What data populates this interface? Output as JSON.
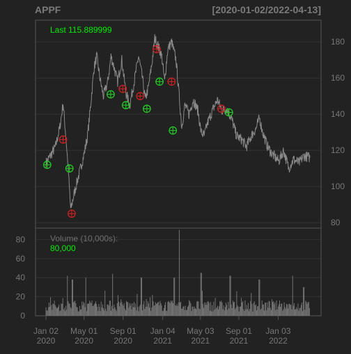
{
  "header": {
    "symbol": "APPF",
    "date_range": "[2020-01-02/2022-04-13]"
  },
  "colors": {
    "background": "#222222",
    "panel_border": "#555555",
    "grid": "#333333",
    "axis_text": "#777777",
    "header_text": "#7a7a7a",
    "price_line": "#8a8a8a",
    "volume_bar": "#7d7d7d",
    "buy_marker": "#22cc22",
    "sell_marker": "#cc2222",
    "last_text": "#00ee00"
  },
  "chart_data": [
    {
      "type": "line",
      "name": "price",
      "legend_text": "Last 115.889999",
      "ylim": [
        77,
        192
      ],
      "y_ticks": [
        80,
        100,
        120,
        140,
        160,
        180
      ],
      "y_tick_labels": [
        "80",
        "100",
        "120",
        "140",
        "160",
        "180"
      ],
      "x_range": [
        "2020-01-02",
        "2022-04-13"
      ],
      "grid": true,
      "series_points": [
        [
          "2020-01-02",
          113
        ],
        [
          "2020-01-16",
          117
        ],
        [
          "2020-02-01",
          122
        ],
        [
          "2020-02-15",
          133
        ],
        [
          "2020-02-25",
          146
        ],
        [
          "2020-03-05",
          127
        ],
        [
          "2020-03-12",
          110
        ],
        [
          "2020-03-20",
          87
        ],
        [
          "2020-03-28",
          94
        ],
        [
          "2020-04-08",
          102
        ],
        [
          "2020-04-20",
          110
        ],
        [
          "2020-05-01",
          118
        ],
        [
          "2020-05-12",
          128
        ],
        [
          "2020-05-22",
          145
        ],
        [
          "2020-06-01",
          165
        ],
        [
          "2020-06-10",
          172
        ],
        [
          "2020-06-20",
          160
        ],
        [
          "2020-07-01",
          150
        ],
        [
          "2020-07-15",
          158
        ],
        [
          "2020-07-25",
          172
        ],
        [
          "2020-08-05",
          165
        ],
        [
          "2020-08-15",
          158
        ],
        [
          "2020-08-28",
          170
        ],
        [
          "2020-09-10",
          152
        ],
        [
          "2020-09-22",
          145
        ],
        [
          "2020-10-05",
          157
        ],
        [
          "2020-10-20",
          172
        ],
        [
          "2020-11-01",
          160
        ],
        [
          "2020-11-10",
          148
        ],
        [
          "2020-11-20",
          155
        ],
        [
          "2020-12-01",
          168
        ],
        [
          "2020-12-10",
          182
        ],
        [
          "2020-12-20",
          178
        ],
        [
          "2021-01-01",
          172
        ],
        [
          "2021-01-10",
          158
        ],
        [
          "2021-01-20",
          176
        ],
        [
          "2021-02-01",
          180
        ],
        [
          "2021-02-15",
          170
        ],
        [
          "2021-02-25",
          150
        ],
        [
          "2021-03-05",
          133
        ],
        [
          "2021-03-15",
          145
        ],
        [
          "2021-03-28",
          140
        ],
        [
          "2021-04-10",
          148
        ],
        [
          "2021-04-25",
          142
        ],
        [
          "2021-05-05",
          130
        ],
        [
          "2021-05-15",
          128
        ],
        [
          "2021-05-25",
          135
        ],
        [
          "2021-06-10",
          142
        ],
        [
          "2021-06-25",
          148
        ],
        [
          "2021-07-10",
          142
        ],
        [
          "2021-07-25",
          143
        ],
        [
          "2021-08-10",
          137
        ],
        [
          "2021-08-25",
          128
        ],
        [
          "2021-09-10",
          126
        ],
        [
          "2021-09-25",
          122
        ],
        [
          "2021-10-10",
          128
        ],
        [
          "2021-10-25",
          132
        ],
        [
          "2021-11-05",
          138
        ],
        [
          "2021-11-15",
          130
        ],
        [
          "2021-12-01",
          122
        ],
        [
          "2021-12-15",
          118
        ],
        [
          "2022-01-05",
          114
        ],
        [
          "2022-01-20",
          120
        ],
        [
          "2022-02-05",
          110
        ],
        [
          "2022-02-20",
          115
        ],
        [
          "2022-03-10",
          113
        ],
        [
          "2022-03-25",
          117
        ],
        [
          "2022-04-13",
          116
        ]
      ],
      "buy_signals": [
        [
          "2020-01-06",
          112
        ],
        [
          "2020-03-16",
          110
        ],
        [
          "2020-07-24",
          151
        ],
        [
          "2020-09-10",
          145
        ],
        [
          "2020-11-15",
          143
        ],
        [
          "2020-12-25",
          158
        ],
        [
          "2021-02-05",
          131
        ],
        [
          "2021-08-01",
          141
        ]
      ],
      "sell_signals": [
        [
          "2020-02-25",
          126
        ],
        [
          "2020-03-23",
          85
        ],
        [
          "2020-08-31",
          154
        ],
        [
          "2020-10-25",
          150
        ],
        [
          "2020-12-16",
          176
        ],
        [
          "2021-02-01",
          158
        ],
        [
          "2021-07-08",
          143
        ]
      ]
    },
    {
      "type": "bar",
      "name": "volume",
      "title": "Volume (10,000s):",
      "last_value_text": "80,000",
      "ylim": [
        0,
        92
      ],
      "y_ticks": [
        0,
        20,
        40,
        60,
        80
      ],
      "y_tick_labels": [
        "0",
        "20",
        "40",
        "60",
        "80"
      ],
      "baseline": 13,
      "spikes": [
        [
          "2020-03-10",
          42
        ],
        [
          "2020-03-25",
          38
        ],
        [
          "2020-05-07",
          40
        ],
        [
          "2020-07-30",
          44
        ],
        [
          "2020-10-29",
          40
        ],
        [
          "2021-02-10",
          40
        ],
        [
          "2021-02-25",
          90
        ],
        [
          "2021-05-05",
          45
        ],
        [
          "2021-08-05",
          42
        ],
        [
          "2021-11-04",
          38
        ],
        [
          "2022-02-17",
          42
        ],
        [
          "2022-03-25",
          30
        ]
      ],
      "x_tick_dates": [
        "2020-01-02",
        "2020-05-01",
        "2020-09-01",
        "2021-01-04",
        "2021-05-03",
        "2021-09-01",
        "2022-01-03"
      ],
      "x_tick_labels": [
        [
          "Jan 02",
          "2020"
        ],
        [
          "May 01",
          "2020"
        ],
        [
          "Sep 01",
          "2020"
        ],
        [
          "Jan 04",
          "2021"
        ],
        [
          "May 03",
          "2021"
        ],
        [
          "Sep 01",
          "2021"
        ],
        [
          "Jan 03",
          "2022"
        ]
      ]
    }
  ]
}
